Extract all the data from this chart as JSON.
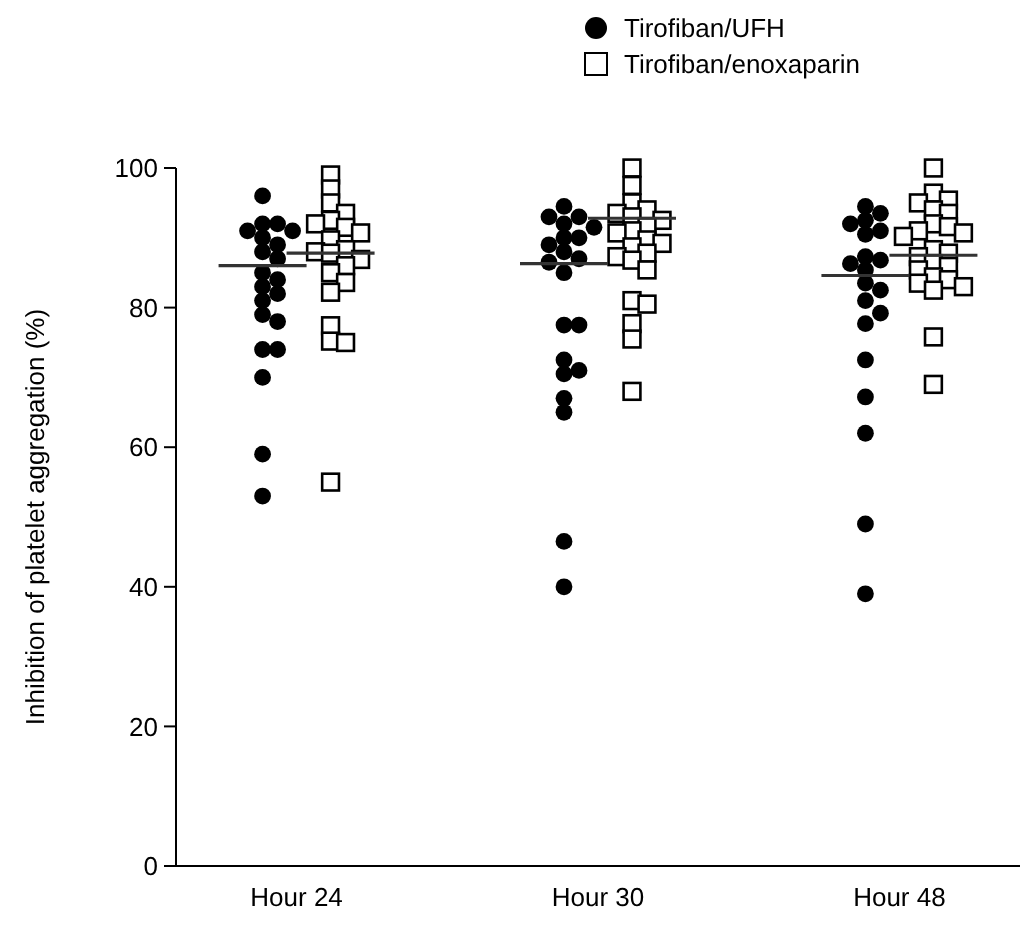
{
  "chart_data": {
    "type": "scatter",
    "ylabel": "Inhibition of platelet aggregation (%)",
    "categories": [
      "Hour 24",
      "Hour 30",
      "Hour 48"
    ],
    "ylim": [
      0,
      100
    ],
    "yticks": [
      0,
      20,
      40,
      60,
      80,
      100
    ],
    "legend": "top right",
    "grid": false,
    "series": [
      {
        "name": "Tirofiban/UFH",
        "marker": "circle",
        "color": "#000000",
        "x": [
          "Hour 24",
          "Hour 24",
          "Hour 24",
          "Hour 24",
          "Hour 24",
          "Hour 24",
          "Hour 24",
          "Hour 24",
          "Hour 24",
          "Hour 24",
          "Hour 24",
          "Hour 24",
          "Hour 24",
          "Hour 24",
          "Hour 24",
          "Hour 24",
          "Hour 24",
          "Hour 24",
          "Hour 24",
          "Hour 24",
          "Hour 24",
          "Hour 30",
          "Hour 30",
          "Hour 30",
          "Hour 30",
          "Hour 30",
          "Hour 30",
          "Hour 30",
          "Hour 30",
          "Hour 30",
          "Hour 30",
          "Hour 30",
          "Hour 30",
          "Hour 30",
          "Hour 30",
          "Hour 30",
          "Hour 30",
          "Hour 30",
          "Hour 30",
          "Hour 30",
          "Hour 30",
          "Hour 30",
          "Hour 48",
          "Hour 48",
          "Hour 48",
          "Hour 48",
          "Hour 48",
          "Hour 48",
          "Hour 48",
          "Hour 48",
          "Hour 48",
          "Hour 48",
          "Hour 48",
          "Hour 48",
          "Hour 48",
          "Hour 48",
          "Hour 48",
          "Hour 48",
          "Hour 48",
          "Hour 48",
          "Hour 48",
          "Hour 48"
        ],
        "values": [
          96,
          92,
          92,
          91,
          91,
          90,
          89,
          88,
          87,
          85,
          84,
          83,
          82,
          81,
          79,
          78,
          74,
          74,
          70,
          59,
          53,
          94.5,
          93,
          93,
          92,
          91.5,
          90,
          90,
          89,
          88,
          87,
          86.5,
          85,
          77.5,
          77.5,
          72.5,
          71,
          70.5,
          67,
          65,
          46.5,
          40,
          94.5,
          93.5,
          92.5,
          92,
          91,
          90.5,
          87.3,
          86.8,
          86.3,
          85.4,
          83.5,
          82.5,
          81,
          79.2,
          77.7,
          72.5,
          67.2,
          62,
          49,
          39
        ]
      },
      {
        "name": "Tirofiban/enoxaparin",
        "marker": "square",
        "color": "#000000",
        "x": [
          "Hour 24",
          "Hour 24",
          "Hour 24",
          "Hour 24",
          "Hour 24",
          "Hour 24",
          "Hour 24",
          "Hour 24",
          "Hour 24",
          "Hour 24",
          "Hour 24",
          "Hour 24",
          "Hour 24",
          "Hour 24",
          "Hour 24",
          "Hour 24",
          "Hour 24",
          "Hour 24",
          "Hour 24",
          "Hour 24",
          "Hour 24",
          "Hour 30",
          "Hour 30",
          "Hour 30",
          "Hour 30",
          "Hour 30",
          "Hour 30",
          "Hour 30",
          "Hour 30",
          "Hour 30",
          "Hour 30",
          "Hour 30",
          "Hour 30",
          "Hour 30",
          "Hour 30",
          "Hour 30",
          "Hour 30",
          "Hour 30",
          "Hour 30",
          "Hour 30",
          "Hour 30",
          "Hour 30",
          "Hour 30",
          "Hour 48",
          "Hour 48",
          "Hour 48",
          "Hour 48",
          "Hour 48",
          "Hour 48",
          "Hour 48",
          "Hour 48",
          "Hour 48",
          "Hour 48",
          "Hour 48",
          "Hour 48",
          "Hour 48",
          "Hour 48",
          "Hour 48",
          "Hour 48",
          "Hour 48",
          "Hour 48",
          "Hour 48",
          "Hour 48",
          "Hour 48",
          "Hour 48",
          "Hour 48",
          "Hour 48"
        ],
        "values": [
          99,
          97,
          95,
          93.5,
          92.5,
          92,
          91.5,
          90.7,
          89.7,
          88.3,
          88,
          87.8,
          86.9,
          86,
          85,
          83.6,
          82.2,
          77.4,
          75.2,
          75,
          55,
          100,
          97.5,
          95,
          94,
          93.5,
          93,
          92.5,
          91.6,
          91,
          90.7,
          89.7,
          89.2,
          88.7,
          87.8,
          87.3,
          86.8,
          85.4,
          81,
          80.5,
          77.7,
          75.5,
          68,
          100,
          96.4,
          95.4,
          95,
          94,
          93.5,
          92,
          91.6,
          91,
          90.7,
          90.2,
          88.3,
          87.8,
          87.3,
          86.3,
          85.9,
          85.4,
          84.4,
          84,
          83.5,
          83,
          82.5,
          75.8,
          69
        ]
      },
      {
        "type": "box",
        "color": "#333333",
        "boxes": [
          {
            "low": 86,
            "q1": 86,
            "median": 86,
            "q3": 86,
            "high": 86
          },
          {
            "low": 86.3,
            "q1": 86.3,
            "median": 86.3,
            "q3": 86.3,
            "high": 86.3
          },
          {
            "low": 84.6,
            "q1": 84.6,
            "median": 84.6,
            "q3": 84.6,
            "high": 84.6
          }
        ]
      },
      {
        "type": "box",
        "color": "#333333",
        "boxes": [
          {
            "low": 87.8,
            "q1": 87.8,
            "median": 87.8,
            "q3": 87.8,
            "high": 87.8
          },
          {
            "low": 92.8,
            "q1": 92.8,
            "median": 92.8,
            "q3": 92.8,
            "high": 92.8
          },
          {
            "low": 87.5,
            "q1": 87.5,
            "median": 87.5,
            "q3": 87.5,
            "high": 87.5
          }
        ]
      }
    ]
  }
}
